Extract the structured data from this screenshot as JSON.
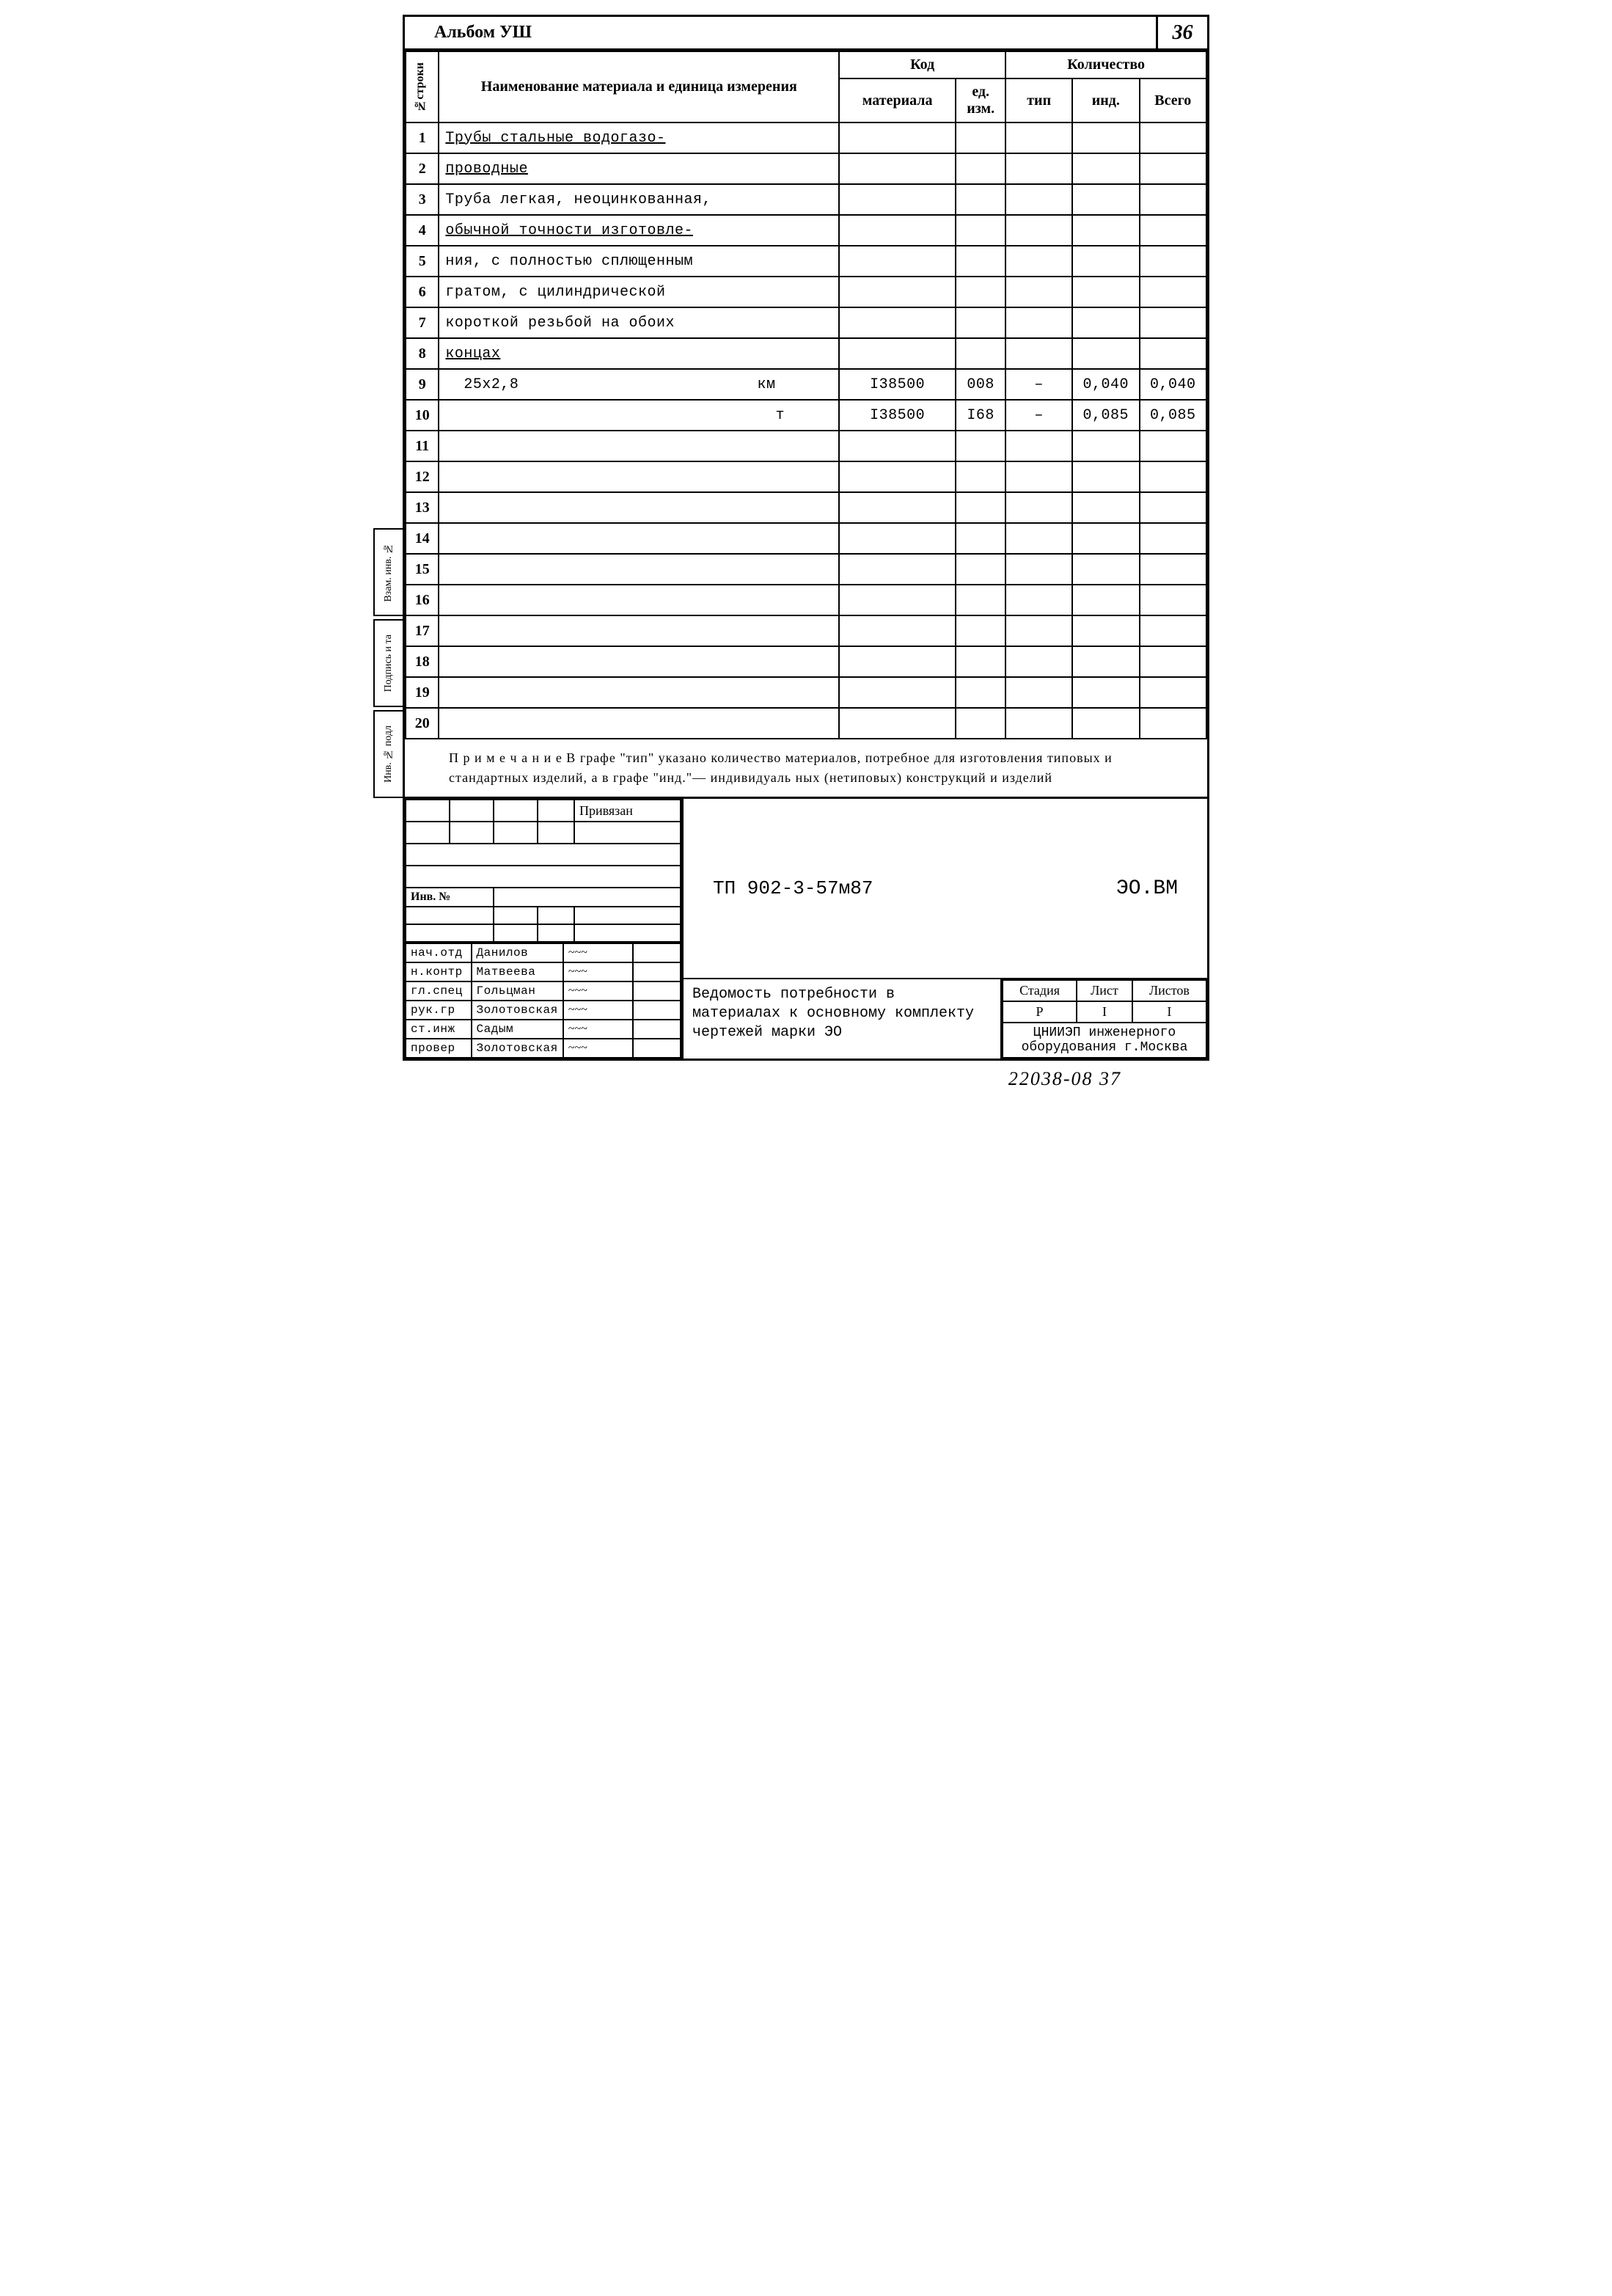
{
  "album": "Альбом УШ",
  "page_number": "36",
  "headers": {
    "row_num": "№строки",
    "name": "Наименование материала и единица измерения",
    "code": "Код",
    "code_material": "материала",
    "code_unit": "ед. изм.",
    "quantity": "Количество",
    "qty_type": "тип",
    "qty_ind": "инд.",
    "qty_total": "Всего"
  },
  "rows": [
    {
      "n": "1",
      "name": "Трубы стальные водогазо-",
      "u": true,
      "mat": "",
      "unit": "",
      "t": "",
      "i": "",
      "tot": ""
    },
    {
      "n": "2",
      "name": "проводные",
      "u": true,
      "mat": "",
      "unit": "",
      "t": "",
      "i": "",
      "tot": ""
    },
    {
      "n": "3",
      "name": "Труба легкая, неоцинкованная,",
      "u": false,
      "mat": "",
      "unit": "",
      "t": "",
      "i": "",
      "tot": ""
    },
    {
      "n": "4",
      "name": "обычной точности изготовле-",
      "u": true,
      "mat": "",
      "unit": "",
      "t": "",
      "i": "",
      "tot": ""
    },
    {
      "n": "5",
      "name": "ния, с полностью сплющенным",
      "u": false,
      "mat": "",
      "unit": "",
      "t": "",
      "i": "",
      "tot": ""
    },
    {
      "n": "6",
      "name": "гратом, с цилиндрической",
      "u": false,
      "mat": "",
      "unit": "",
      "t": "",
      "i": "",
      "tot": ""
    },
    {
      "n": "7",
      "name": "короткой резьбой на обоих",
      "u": false,
      "mat": "",
      "unit": "",
      "t": "",
      "i": "",
      "tot": ""
    },
    {
      "n": "8",
      "name": "концах",
      "u": true,
      "mat": "",
      "unit": "",
      "t": "",
      "i": "",
      "tot": ""
    },
    {
      "n": "9",
      "name": "  25х2,8                          км",
      "u": false,
      "mat": "I38500",
      "unit": "008",
      "t": "–",
      "i": "0,040",
      "tot": "0,040"
    },
    {
      "n": "10",
      "name": "                                    т",
      "u": false,
      "mat": "I38500",
      "unit": "I68",
      "t": "–",
      "i": "0,085",
      "tot": "0,085"
    },
    {
      "n": "11",
      "name": "",
      "u": false,
      "mat": "",
      "unit": "",
      "t": "",
      "i": "",
      "tot": ""
    },
    {
      "n": "12",
      "name": "",
      "u": false,
      "mat": "",
      "unit": "",
      "t": "",
      "i": "",
      "tot": ""
    },
    {
      "n": "13",
      "name": "",
      "u": false,
      "mat": "",
      "unit": "",
      "t": "",
      "i": "",
      "tot": ""
    },
    {
      "n": "14",
      "name": "",
      "u": false,
      "mat": "",
      "unit": "",
      "t": "",
      "i": "",
      "tot": ""
    },
    {
      "n": "15",
      "name": "",
      "u": false,
      "mat": "",
      "unit": "",
      "t": "",
      "i": "",
      "tot": ""
    },
    {
      "n": "16",
      "name": "",
      "u": false,
      "mat": "",
      "unit": "",
      "t": "",
      "i": "",
      "tot": ""
    },
    {
      "n": "17",
      "name": "",
      "u": false,
      "mat": "",
      "unit": "",
      "t": "",
      "i": "",
      "tot": ""
    },
    {
      "n": "18",
      "name": "",
      "u": false,
      "mat": "",
      "unit": "",
      "t": "",
      "i": "",
      "tot": ""
    },
    {
      "n": "19",
      "name": "",
      "u": false,
      "mat": "",
      "unit": "",
      "t": "",
      "i": "",
      "tot": ""
    },
    {
      "n": "20",
      "name": "",
      "u": false,
      "mat": "",
      "unit": "",
      "t": "",
      "i": "",
      "tot": ""
    }
  ],
  "note": "П р и м е ч а н и е  В графе \"тип\" указано количество материалов, потребное для изготовления типовых и стандартных изделий, а в графе \"инд.\"— индивидуаль ных (нетиповых) конструкций и изделий",
  "priv": "Привязан",
  "inv_label": "Инв. №",
  "signers": [
    {
      "role": "нач.отд",
      "name": "Данилов"
    },
    {
      "role": "н.контр",
      "name": "Матвеева"
    },
    {
      "role": "гл.спец",
      "name": "Гольцман"
    },
    {
      "role": "рук.гр",
      "name": "Золотовская"
    },
    {
      "role": "ст.инж",
      "name": "Садым"
    },
    {
      "role": "провер",
      "name": "Золотовская"
    }
  ],
  "doc_code": "ТП   902-3-57м87",
  "doc_mark": "ЭО.ВМ",
  "description": "Ведомость потребности в материалах к основному комплекту чертежей марки ЭО",
  "stage": {
    "h1": "Стадия",
    "h2": "Лист",
    "h3": "Листов",
    "v1": "Р",
    "v2": "I",
    "v3": "I"
  },
  "org": "ЦНИИЭП инженерного оборудования г.Москва",
  "side_tabs": [
    "Взам. инв. №",
    "Подпись и   та",
    "Инв. № подл"
  ],
  "footer": "22038-08   37"
}
